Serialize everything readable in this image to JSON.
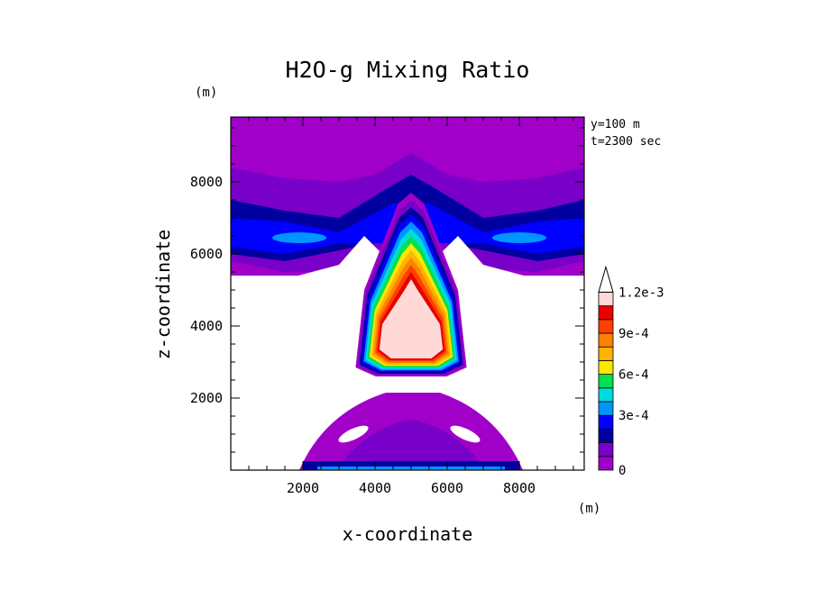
{
  "chart_data": {
    "type": "heatmap",
    "title": "H2O-g Mixing Ratio",
    "xlabel": "x-coordinate",
    "ylabel": "z-coordinate",
    "x_unit": "(m)",
    "y_unit": "(m)",
    "xlim": [
      0,
      9800
    ],
    "ylim": [
      0,
      9800
    ],
    "xticks": [
      2000,
      4000,
      6000,
      8000
    ],
    "yticks": [
      2000,
      4000,
      6000,
      8000
    ],
    "info": [
      "y=100 m",
      "t=2300 sec"
    ],
    "colorbar": {
      "levels": [
        0,
        0.0001,
        0.0002,
        0.0003,
        0.0004,
        0.0005,
        0.0006,
        0.0007,
        0.0008,
        0.0009,
        0.001,
        0.0011,
        0.0012
      ],
      "colors": [
        "#a000c8",
        "#7800c8",
        "#0000a0",
        "#0000ff",
        "#0096ff",
        "#00dcdc",
        "#00e050",
        "#ffe600",
        "#ffb400",
        "#ff8200",
        "#ff4000",
        "#e60000",
        "#ffd8d8"
      ],
      "labels": [
        {
          "value": 0,
          "text": "0"
        },
        {
          "value": 0.0003,
          "text": "3e-4"
        },
        {
          "value": 0.0006,
          "text": "6e-4"
        },
        {
          "value": 0.0009,
          "text": "9e-4"
        },
        {
          "value": 0.0012,
          "text": "1.2e-3"
        }
      ]
    },
    "features": {
      "upper_layer": {
        "x": [
          0,
          9800
        ],
        "z": [
          5400,
          9800
        ]
      },
      "plume_core": {
        "x_center": 5000,
        "z": [
          2600,
          7200
        ],
        "max_level": 0.0012
      },
      "lower_bulge": {
        "x": [
          2000,
          8000
        ],
        "z": [
          0,
          2200
        ]
      }
    }
  }
}
